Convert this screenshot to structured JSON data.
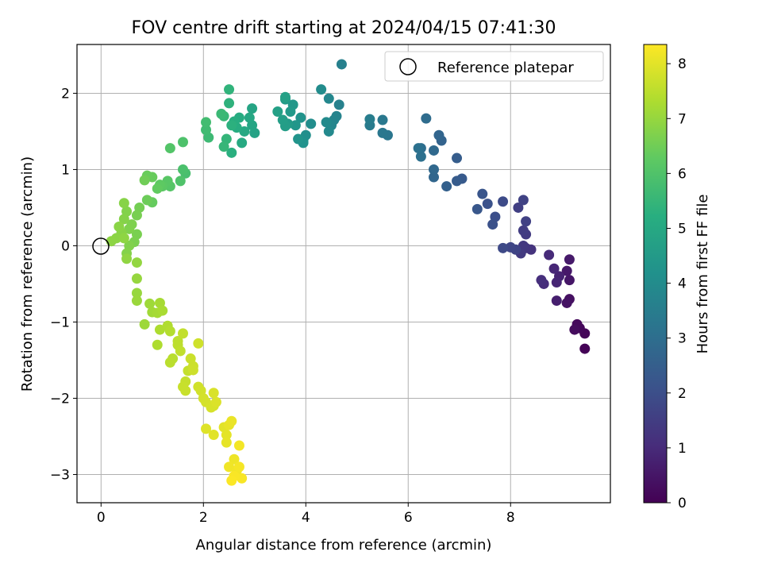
{
  "chart_data": {
    "type": "scatter",
    "title": "FOV centre drift starting at 2024/04/15 07:41:30",
    "xlabel": "Angular distance from reference (arcmin)",
    "ylabel": "Rotation from reference (arcmin)",
    "xlim": [
      -0.47,
      9.95
    ],
    "ylim": [
      -3.37,
      2.64
    ],
    "xticks": [
      0,
      2,
      4,
      6,
      8
    ],
    "yticks": [
      -3,
      -2,
      -1,
      0,
      1,
      2
    ],
    "grid": true,
    "legend": {
      "location": "top-right",
      "entries": [
        "Reference platepar"
      ]
    },
    "colorbar": {
      "label": "Hours from first FF file",
      "min": 0,
      "max": 8.35,
      "ticks": [
        0,
        1,
        2,
        3,
        4,
        5,
        6,
        7,
        8
      ],
      "colormap": "viridis"
    },
    "reference_point": {
      "x": 0,
      "y": 0
    },
    "series": [
      {
        "points": [
          [
            9.45,
            -1.35,
            0.05
          ],
          [
            9.45,
            -1.15,
            0.1
          ],
          [
            9.35,
            -1.08,
            0.15
          ],
          [
            9.3,
            -1.03,
            0.2
          ],
          [
            9.25,
            -1.1,
            0.25
          ],
          [
            9.15,
            -0.7,
            0.35
          ],
          [
            9.1,
            -0.75,
            0.4
          ],
          [
            9.15,
            -0.45,
            0.5
          ],
          [
            9.1,
            -0.33,
            0.55
          ],
          [
            9.15,
            -0.18,
            0.6
          ],
          [
            8.9,
            -0.72,
            0.7
          ],
          [
            8.95,
            -0.4,
            0.8
          ],
          [
            8.9,
            -0.48,
            0.85
          ],
          [
            8.85,
            -0.3,
            0.9
          ],
          [
            8.75,
            -0.12,
            1.0
          ],
          [
            8.65,
            -0.5,
            1.05
          ],
          [
            8.6,
            -0.45,
            1.1
          ],
          [
            8.4,
            -0.05,
            1.2
          ],
          [
            8.3,
            -0.03,
            1.3
          ],
          [
            8.25,
            0.0,
            1.35
          ],
          [
            8.2,
            -0.1,
            1.4
          ],
          [
            8.3,
            0.15,
            1.45
          ],
          [
            8.25,
            0.2,
            1.5
          ],
          [
            8.15,
            0.5,
            1.55
          ],
          [
            8.3,
            0.32,
            1.6
          ],
          [
            8.25,
            0.6,
            1.65
          ],
          [
            8.1,
            -0.05,
            1.7
          ],
          [
            8.0,
            -0.02,
            1.75
          ],
          [
            7.85,
            -0.03,
            1.85
          ],
          [
            7.85,
            0.58,
            1.9
          ],
          [
            7.7,
            0.38,
            2.0
          ],
          [
            7.65,
            0.28,
            2.05
          ],
          [
            7.55,
            0.55,
            2.1
          ],
          [
            7.45,
            0.68,
            2.2
          ],
          [
            7.35,
            0.48,
            2.25
          ],
          [
            7.05,
            0.88,
            2.35
          ],
          [
            6.95,
            0.85,
            2.4
          ],
          [
            6.95,
            1.15,
            2.45
          ],
          [
            6.75,
            0.78,
            2.55
          ],
          [
            6.65,
            1.38,
            2.65
          ],
          [
            6.6,
            1.45,
            2.7
          ],
          [
            6.5,
            0.9,
            2.75
          ],
          [
            6.5,
            1.0,
            2.8
          ],
          [
            6.5,
            1.25,
            2.85
          ],
          [
            6.35,
            1.67,
            2.95
          ],
          [
            6.25,
            1.28,
            3.0
          ],
          [
            6.25,
            1.17,
            3.05
          ],
          [
            6.2,
            1.28,
            3.1
          ],
          [
            5.6,
            1.45,
            3.25
          ],
          [
            5.5,
            1.48,
            3.3
          ],
          [
            5.5,
            1.65,
            3.35
          ],
          [
            5.25,
            1.58,
            3.45
          ],
          [
            5.25,
            1.66,
            3.5
          ],
          [
            4.7,
            2.38,
            3.6
          ],
          [
            4.65,
            1.85,
            3.65
          ],
          [
            4.6,
            1.7,
            3.7
          ],
          [
            4.55,
            1.65,
            3.75
          ],
          [
            4.5,
            1.58,
            3.8
          ],
          [
            4.45,
            1.93,
            3.85
          ],
          [
            4.45,
            1.5,
            3.9
          ],
          [
            4.4,
            1.62,
            3.95
          ],
          [
            4.3,
            2.05,
            4.0
          ],
          [
            4.1,
            1.6,
            4.05
          ],
          [
            4.0,
            1.45,
            4.1
          ],
          [
            3.95,
            1.38,
            4.15
          ],
          [
            3.95,
            1.35,
            4.2
          ],
          [
            3.9,
            1.68,
            4.25
          ],
          [
            3.85,
            1.4,
            4.3
          ],
          [
            3.8,
            1.58,
            4.35
          ],
          [
            3.75,
            1.85,
            4.4
          ],
          [
            3.7,
            1.76,
            4.45
          ],
          [
            3.65,
            1.6,
            4.5
          ],
          [
            3.6,
            1.92,
            4.55
          ],
          [
            3.6,
            1.57,
            4.6
          ],
          [
            3.55,
            1.65,
            4.65
          ],
          [
            3.45,
            1.76,
            4.7
          ],
          [
            3.6,
            1.95,
            4.72
          ],
          [
            3.0,
            1.48,
            4.8
          ],
          [
            2.95,
            1.8,
            4.85
          ],
          [
            2.95,
            1.58,
            4.9
          ],
          [
            2.9,
            1.68,
            4.95
          ],
          [
            2.8,
            1.5,
            5.0
          ],
          [
            2.75,
            1.35,
            5.05
          ],
          [
            2.7,
            1.68,
            5.1
          ],
          [
            2.65,
            1.55,
            5.15
          ],
          [
            2.6,
            1.63,
            5.2
          ],
          [
            2.55,
            1.22,
            5.25
          ],
          [
            2.55,
            1.58,
            5.3
          ],
          [
            2.5,
            1.87,
            5.35
          ],
          [
            2.5,
            2.05,
            5.4
          ],
          [
            2.45,
            1.4,
            5.45
          ],
          [
            2.4,
            1.3,
            5.5
          ],
          [
            2.4,
            1.7,
            5.55
          ],
          [
            2.35,
            1.73,
            5.6
          ],
          [
            2.1,
            1.42,
            5.65
          ],
          [
            2.05,
            1.52,
            5.7
          ],
          [
            2.05,
            1.62,
            5.75
          ],
          [
            1.65,
            0.95,
            5.85
          ],
          [
            1.6,
            1.0,
            5.9
          ],
          [
            1.6,
            1.36,
            5.95
          ],
          [
            1.55,
            0.85,
            6.0
          ],
          [
            1.35,
            1.28,
            6.05
          ],
          [
            1.35,
            0.78,
            6.1
          ],
          [
            1.3,
            0.85,
            6.15
          ],
          [
            1.2,
            0.78,
            6.2
          ],
          [
            1.15,
            0.8,
            6.25
          ],
          [
            1.1,
            0.75,
            6.3
          ],
          [
            1.0,
            0.57,
            6.35
          ],
          [
            1.0,
            0.9,
            6.38
          ],
          [
            0.9,
            0.92,
            6.4
          ],
          [
            0.9,
            0.6,
            6.45
          ],
          [
            0.85,
            0.86,
            6.5
          ],
          [
            0.75,
            0.5,
            6.55
          ],
          [
            0.7,
            0.4,
            6.6
          ],
          [
            0.7,
            0.15,
            6.62
          ],
          [
            0.65,
            0.05,
            6.65
          ],
          [
            0.6,
            0.28,
            6.68
          ],
          [
            0.55,
            0.22,
            6.7
          ],
          [
            0.55,
            0.0,
            6.72
          ],
          [
            0.5,
            0.45,
            6.74
          ],
          [
            0.5,
            -0.1,
            6.76
          ],
          [
            0.45,
            0.35,
            6.78
          ],
          [
            0.45,
            0.56,
            6.8
          ],
          [
            0.4,
            0.17,
            6.82
          ],
          [
            0.35,
            0.25,
            6.84
          ],
          [
            0.3,
            0.1,
            6.86
          ],
          [
            0.2,
            0.06,
            6.88
          ],
          [
            0.45,
            0.1,
            6.9
          ],
          [
            0.5,
            -0.17,
            6.92
          ],
          [
            0.7,
            -0.22,
            6.96
          ],
          [
            0.7,
            -0.43,
            7.0
          ],
          [
            0.7,
            -0.62,
            7.02
          ],
          [
            0.7,
            -0.72,
            7.05
          ],
          [
            0.85,
            -1.03,
            7.1
          ],
          [
            0.95,
            -0.76,
            7.12
          ],
          [
            1.0,
            -0.87,
            7.15
          ],
          [
            1.1,
            -0.88,
            7.2
          ],
          [
            1.15,
            -0.75,
            7.22
          ],
          [
            1.2,
            -0.85,
            7.25
          ],
          [
            1.15,
            -1.1,
            7.3
          ],
          [
            1.1,
            -1.3,
            7.32
          ],
          [
            1.3,
            -1.05,
            7.35
          ],
          [
            1.35,
            -1.12,
            7.4
          ],
          [
            1.4,
            -1.48,
            7.45
          ],
          [
            1.35,
            -1.53,
            7.48
          ],
          [
            1.5,
            -1.25,
            7.5
          ],
          [
            1.5,
            -1.3,
            7.52
          ],
          [
            1.55,
            -1.38,
            7.55
          ],
          [
            1.6,
            -1.15,
            7.58
          ],
          [
            1.7,
            -1.64,
            7.6
          ],
          [
            1.65,
            -1.78,
            7.62
          ],
          [
            1.6,
            -1.85,
            7.64
          ],
          [
            1.65,
            -1.9,
            7.66
          ],
          [
            1.75,
            -1.48,
            7.68
          ],
          [
            1.8,
            -1.58,
            7.7
          ],
          [
            1.8,
            -1.63,
            7.72
          ],
          [
            1.9,
            -1.28,
            7.74
          ],
          [
            1.9,
            -1.85,
            7.76
          ],
          [
            1.95,
            -1.9,
            7.78
          ],
          [
            2.0,
            -2.0,
            7.8
          ],
          [
            2.05,
            -2.05,
            7.82
          ],
          [
            2.15,
            -2.12,
            7.84
          ],
          [
            2.2,
            -2.1,
            7.86
          ],
          [
            2.2,
            -1.93,
            7.88
          ],
          [
            2.25,
            -2.05,
            7.9
          ],
          [
            2.05,
            -2.4,
            7.95
          ],
          [
            2.2,
            -2.48,
            7.98
          ],
          [
            2.4,
            -2.38,
            8.0
          ],
          [
            2.45,
            -2.48,
            8.02
          ],
          [
            2.45,
            -2.58,
            8.05
          ],
          [
            2.5,
            -2.35,
            8.07
          ],
          [
            2.55,
            -2.3,
            8.1
          ],
          [
            2.6,
            -2.8,
            8.15
          ],
          [
            2.5,
            -2.9,
            8.18
          ],
          [
            2.65,
            -2.95,
            8.2
          ],
          [
            2.7,
            -2.62,
            8.22
          ],
          [
            2.7,
            -2.9,
            8.25
          ],
          [
            2.75,
            -3.05,
            8.28
          ],
          [
            2.6,
            -3.02,
            8.3
          ],
          [
            2.55,
            -3.08,
            8.32
          ]
        ]
      }
    ]
  }
}
